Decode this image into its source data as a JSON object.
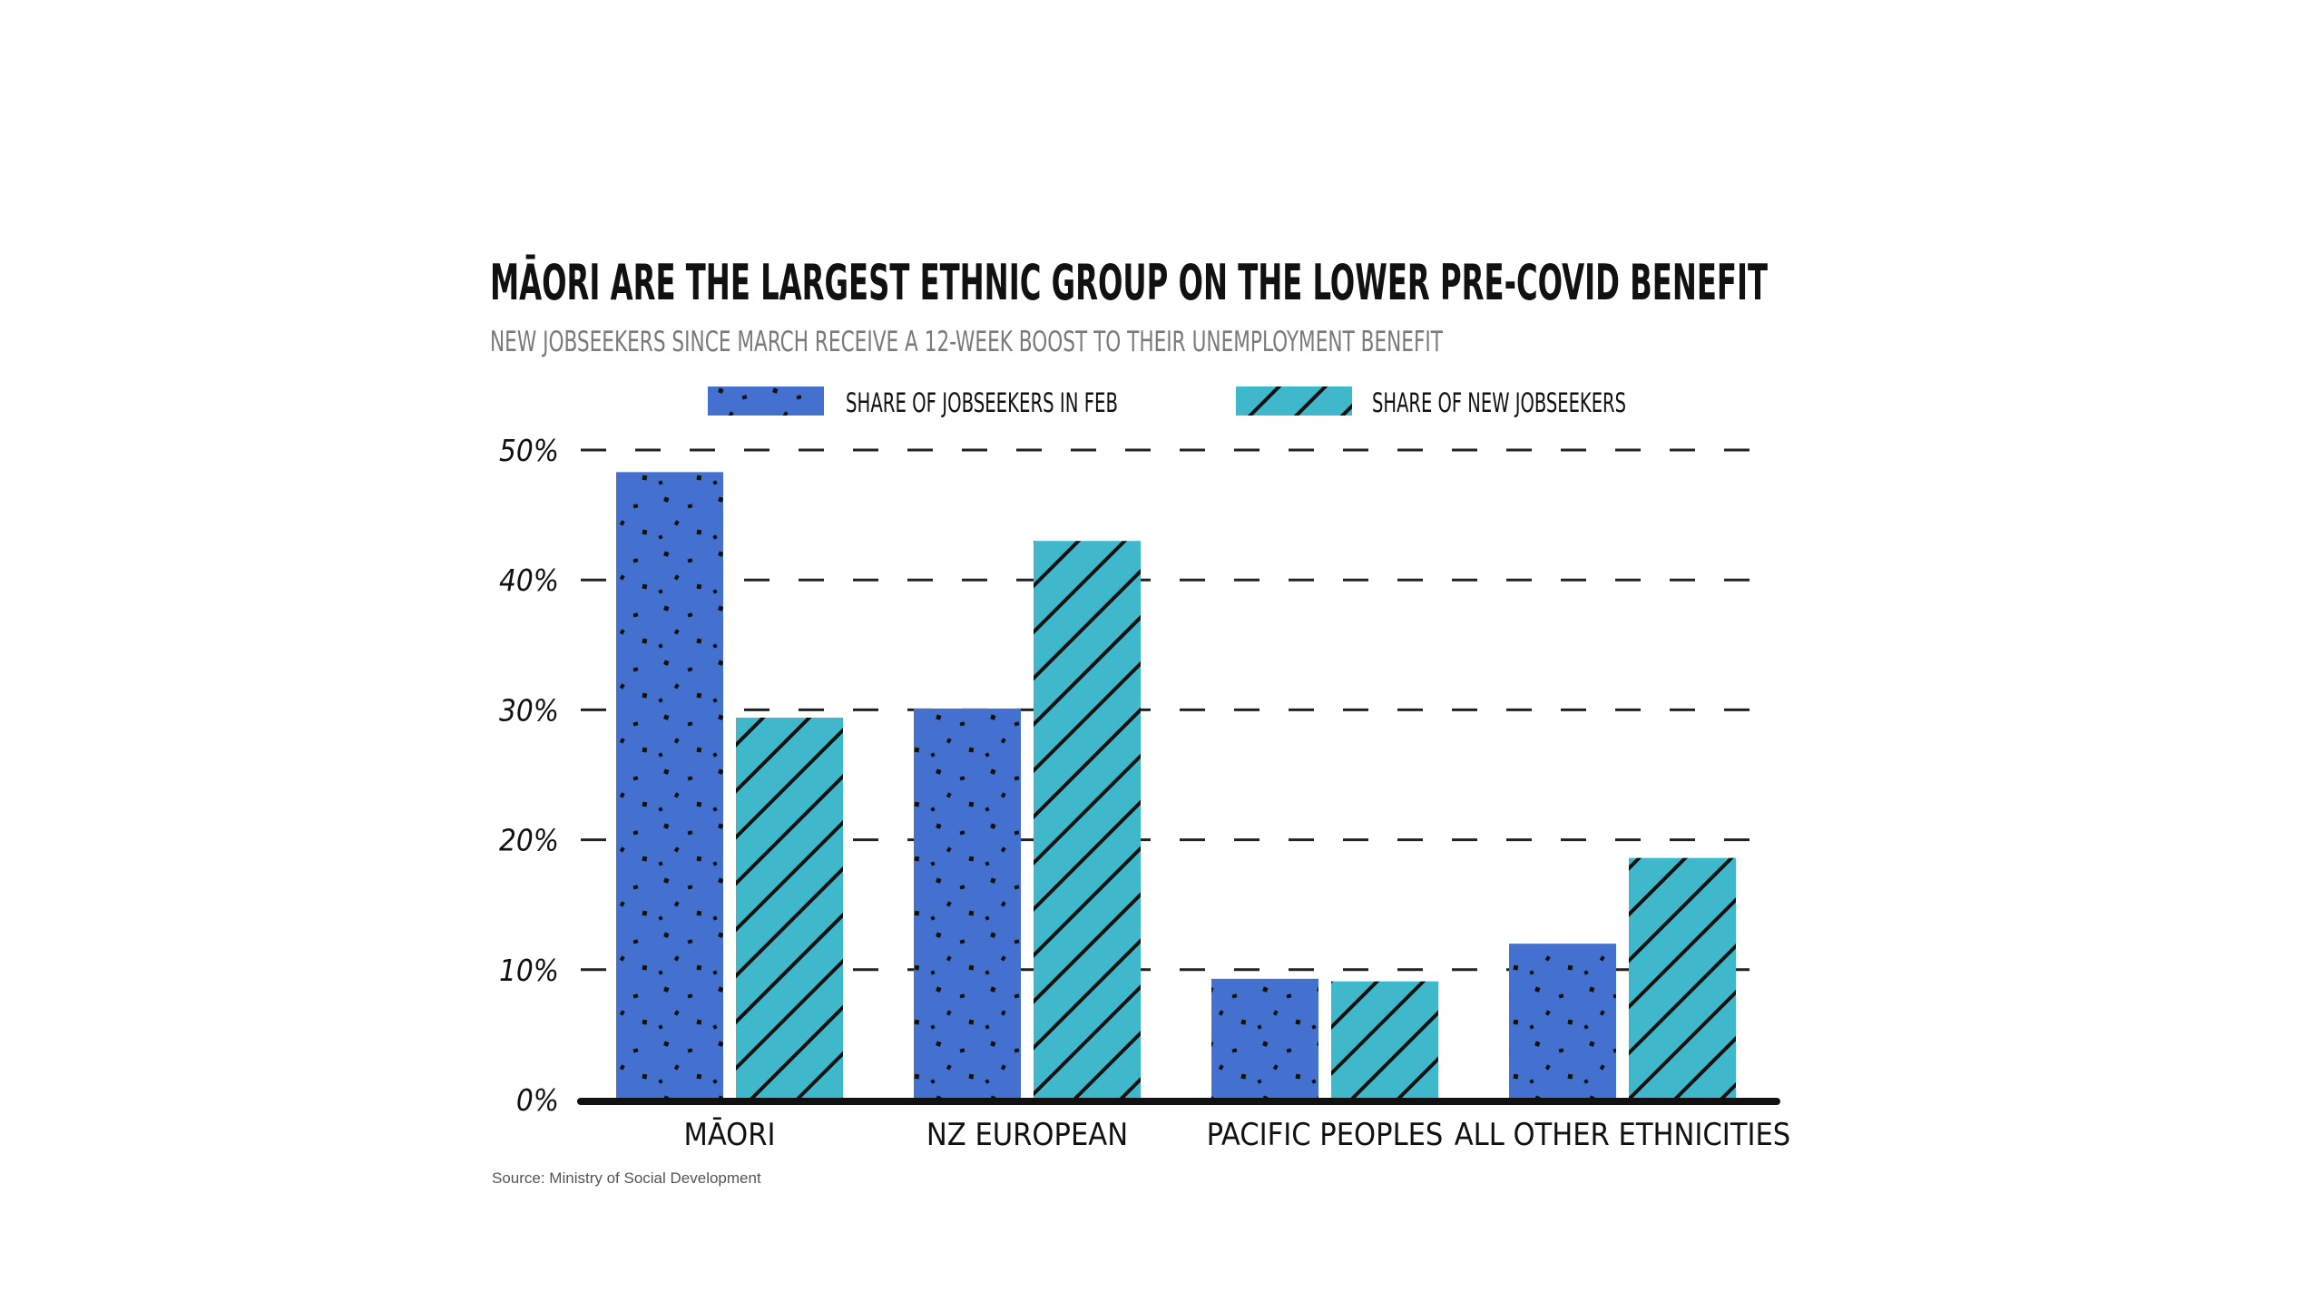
{
  "chart_data": {
    "type": "bar",
    "title": "MĀORI ARE THE LARGEST ETHNIC GROUP ON THE LOWER PRE-COVID BENEFIT",
    "subtitle": "NEW JOBSEEKERS SINCE MARCH RECEIVE A 12-WEEK BOOST TO THEIR UNEMPLOYMENT BENEFIT",
    "categories": [
      "MĀORI",
      "NZ EUROPEAN",
      "PACIFIC PEOPLES",
      "ALL OTHER ETHNICITIES"
    ],
    "series": [
      {
        "name": "SHARE OF JOBSEEKERS IN FEB",
        "values": [
          48.3,
          30.1,
          9.3,
          12.0
        ],
        "color": "#4470cf",
        "pattern": "dots"
      },
      {
        "name": "SHARE OF NEW JOBSEEKERS",
        "values": [
          29.4,
          43.0,
          9.1,
          18.6
        ],
        "color": "#3fb8cb",
        "pattern": "diagonal-stripes"
      }
    ],
    "yticks": [
      "0%",
      "10%",
      "20%",
      "30%",
      "40%",
      "50%"
    ],
    "ylim": [
      0,
      50
    ],
    "grid": true,
    "grid_style": "dashed",
    "legend_position": "top-center",
    "xlabel": "",
    "ylabel": ""
  },
  "source": "Source: Ministry of Social Development"
}
